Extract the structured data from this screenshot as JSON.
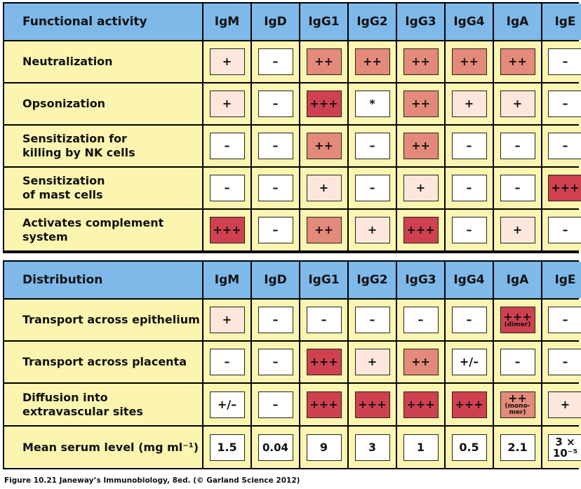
{
  "functional": {
    "header": "Functional activity",
    "columns": [
      "IgM",
      "IgD",
      "IgG1",
      "IgG2",
      "IgG3",
      "IgG4",
      "IgA",
      "IgE"
    ],
    "rows": [
      {
        "label": "Neutralization",
        "cells": [
          {
            "v": "+",
            "sub": "",
            "lvl": 1
          },
          {
            "v": "–",
            "sub": "",
            "lvl": 0
          },
          {
            "v": "++",
            "sub": "",
            "lvl": 2
          },
          {
            "v": "++",
            "sub": "",
            "lvl": 2
          },
          {
            "v": "++",
            "sub": "",
            "lvl": 2
          },
          {
            "v": "++",
            "sub": "",
            "lvl": 2
          },
          {
            "v": "++",
            "sub": "",
            "lvl": 2
          },
          {
            "v": "–",
            "sub": "",
            "lvl": 0
          }
        ]
      },
      {
        "label": "Opsonization",
        "cells": [
          {
            "v": "+",
            "sub": "",
            "lvl": 1
          },
          {
            "v": "–",
            "sub": "",
            "lvl": 0
          },
          {
            "v": "+++",
            "sub": "",
            "lvl": 3
          },
          {
            "v": "*",
            "sub": "",
            "lvl": 0
          },
          {
            "v": "++",
            "sub": "",
            "lvl": 2
          },
          {
            "v": "+",
            "sub": "",
            "lvl": 1
          },
          {
            "v": "+",
            "sub": "",
            "lvl": 1
          },
          {
            "v": "–",
            "sub": "",
            "lvl": 0
          }
        ]
      },
      {
        "label": "Sensitization for\nkilling by NK cells",
        "cells": [
          {
            "v": "–",
            "sub": "",
            "lvl": 0
          },
          {
            "v": "–",
            "sub": "",
            "lvl": 0
          },
          {
            "v": "++",
            "sub": "",
            "lvl": 2
          },
          {
            "v": "–",
            "sub": "",
            "lvl": 0
          },
          {
            "v": "++",
            "sub": "",
            "lvl": 2
          },
          {
            "v": "–",
            "sub": "",
            "lvl": 0
          },
          {
            "v": "–",
            "sub": "",
            "lvl": 0
          },
          {
            "v": "–",
            "sub": "",
            "lvl": 0
          }
        ]
      },
      {
        "label": "Sensitization\nof mast cells",
        "cells": [
          {
            "v": "–",
            "sub": "",
            "lvl": 0
          },
          {
            "v": "–",
            "sub": "",
            "lvl": 0
          },
          {
            "v": "+",
            "sub": "",
            "lvl": 1
          },
          {
            "v": "–",
            "sub": "",
            "lvl": 0
          },
          {
            "v": "+",
            "sub": "",
            "lvl": 1
          },
          {
            "v": "–",
            "sub": "",
            "lvl": 0
          },
          {
            "v": "–",
            "sub": "",
            "lvl": 0
          },
          {
            "v": "+++",
            "sub": "",
            "lvl": 3
          }
        ]
      },
      {
        "label": "Activates complement\nsystem",
        "cells": [
          {
            "v": "+++",
            "sub": "",
            "lvl": 3
          },
          {
            "v": "–",
            "sub": "",
            "lvl": 0
          },
          {
            "v": "++",
            "sub": "",
            "lvl": 2
          },
          {
            "v": "+",
            "sub": "",
            "lvl": 1
          },
          {
            "v": "+++",
            "sub": "",
            "lvl": 3
          },
          {
            "v": "–",
            "sub": "",
            "lvl": 0
          },
          {
            "v": "+",
            "sub": "",
            "lvl": 1
          },
          {
            "v": "–",
            "sub": "",
            "lvl": 0
          }
        ]
      }
    ]
  },
  "distribution": {
    "header": "Distribution",
    "columns": [
      "IgM",
      "IgD",
      "IgG1",
      "IgG2",
      "IgG3",
      "IgG4",
      "IgA",
      "IgE"
    ],
    "rows": [
      {
        "label": "Transport across epithelium",
        "cells": [
          {
            "v": "+",
            "sub": "",
            "lvl": 1
          },
          {
            "v": "–",
            "sub": "",
            "lvl": 0
          },
          {
            "v": "–",
            "sub": "",
            "lvl": 0
          },
          {
            "v": "–",
            "sub": "",
            "lvl": 0
          },
          {
            "v": "–",
            "sub": "",
            "lvl": 0
          },
          {
            "v": "–",
            "sub": "",
            "lvl": 0
          },
          {
            "v": "+++",
            "sub": "(dimer)",
            "lvl": 3
          },
          {
            "v": "–",
            "sub": "",
            "lvl": 0
          }
        ]
      },
      {
        "label": "Transport across placenta",
        "cells": [
          {
            "v": "–",
            "sub": "",
            "lvl": 0
          },
          {
            "v": "–",
            "sub": "",
            "lvl": 0
          },
          {
            "v": "+++",
            "sub": "",
            "lvl": 3
          },
          {
            "v": "+",
            "sub": "",
            "lvl": 1
          },
          {
            "v": "++",
            "sub": "",
            "lvl": 2
          },
          {
            "v": "+/–",
            "sub": "",
            "lvl": 0
          },
          {
            "v": "–",
            "sub": "",
            "lvl": 0
          },
          {
            "v": "–",
            "sub": "",
            "lvl": 0
          }
        ]
      },
      {
        "label": "Diffusion into\nextravascular sites",
        "cells": [
          {
            "v": "+/–",
            "sub": "",
            "lvl": 0
          },
          {
            "v": "–",
            "sub": "",
            "lvl": 0
          },
          {
            "v": "+++",
            "sub": "",
            "lvl": 3
          },
          {
            "v": "+++",
            "sub": "",
            "lvl": 3
          },
          {
            "v": "+++",
            "sub": "",
            "lvl": 3
          },
          {
            "v": "+++",
            "sub": "",
            "lvl": 3
          },
          {
            "v": "++",
            "sub": "(mono-\nmer)",
            "lvl": 2
          },
          {
            "v": "+",
            "sub": "",
            "lvl": 1
          }
        ]
      },
      {
        "label": "Mean serum level (mg ml⁻¹)",
        "cells": [
          {
            "v": "1.5",
            "sub": "",
            "lvl": 0
          },
          {
            "v": "0.04",
            "sub": "",
            "lvl": 0
          },
          {
            "v": "9",
            "sub": "",
            "lvl": 0
          },
          {
            "v": "3",
            "sub": "",
            "lvl": 0
          },
          {
            "v": "1",
            "sub": "",
            "lvl": 0
          },
          {
            "v": "0.5",
            "sub": "",
            "lvl": 0
          },
          {
            "v": "2.1",
            "sub": "",
            "lvl": 0
          },
          {
            "v": "3 ×\n10⁻⁵",
            "sub": "",
            "lvl": 0
          }
        ]
      }
    ]
  },
  "caption": "Figure 10.21  Janeway’s Immunobiology, 8ed. (© Garland Science 2012)",
  "colors": {
    "header_bg": "#7eb9ea",
    "label_bg": "#fbf5b0",
    "level0": "#ffffff",
    "level1": "#fde7dc",
    "level2": "#e38a7b",
    "level3": "#cf4151"
  }
}
